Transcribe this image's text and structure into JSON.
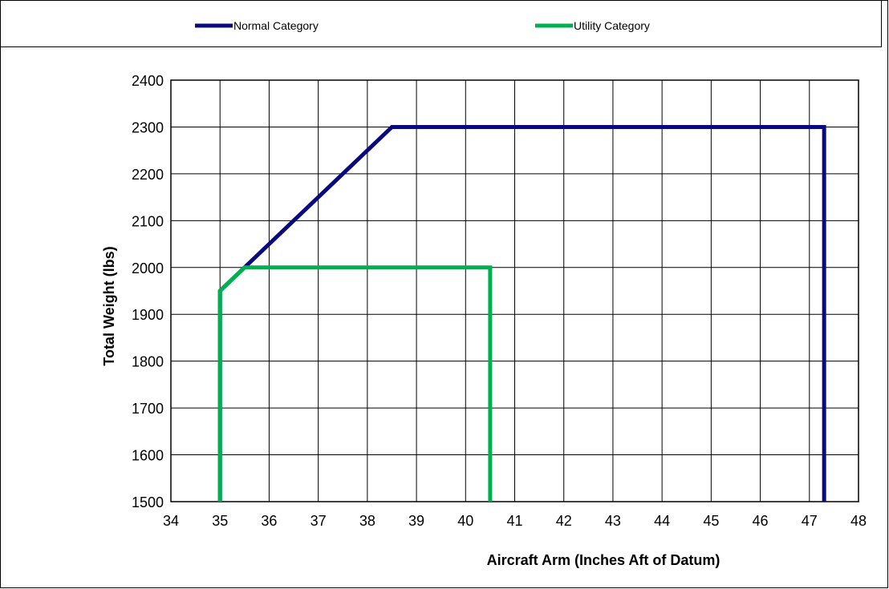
{
  "chart_data": {
    "type": "line",
    "title": "",
    "xlabel": "Aircraft Arm (Inches Aft of Datum)",
    "ylabel": "Total Weight (lbs)",
    "xlim": [
      34,
      48
    ],
    "ylim": [
      1500,
      2400
    ],
    "x_ticks": [
      34,
      35,
      36,
      37,
      38,
      39,
      40,
      41,
      42,
      43,
      44,
      45,
      46,
      47,
      48
    ],
    "y_ticks": [
      1500,
      1600,
      1700,
      1800,
      1900,
      2000,
      2100,
      2200,
      2300,
      2400
    ],
    "grid": true,
    "legend_position": "top",
    "series": [
      {
        "name": "Normal Category",
        "color": "#0a0a80",
        "points": [
          [
            35,
            1500
          ],
          [
            35,
            1950
          ],
          [
            38.5,
            2300
          ],
          [
            47.3,
            2300
          ],
          [
            47.3,
            1500
          ]
        ]
      },
      {
        "name": "Utility Category",
        "color": "#00b050",
        "points": [
          [
            35,
            1500
          ],
          [
            35,
            1950
          ],
          [
            35.5,
            2000
          ],
          [
            40.5,
            2000
          ],
          [
            40.5,
            1500
          ]
        ]
      }
    ]
  }
}
